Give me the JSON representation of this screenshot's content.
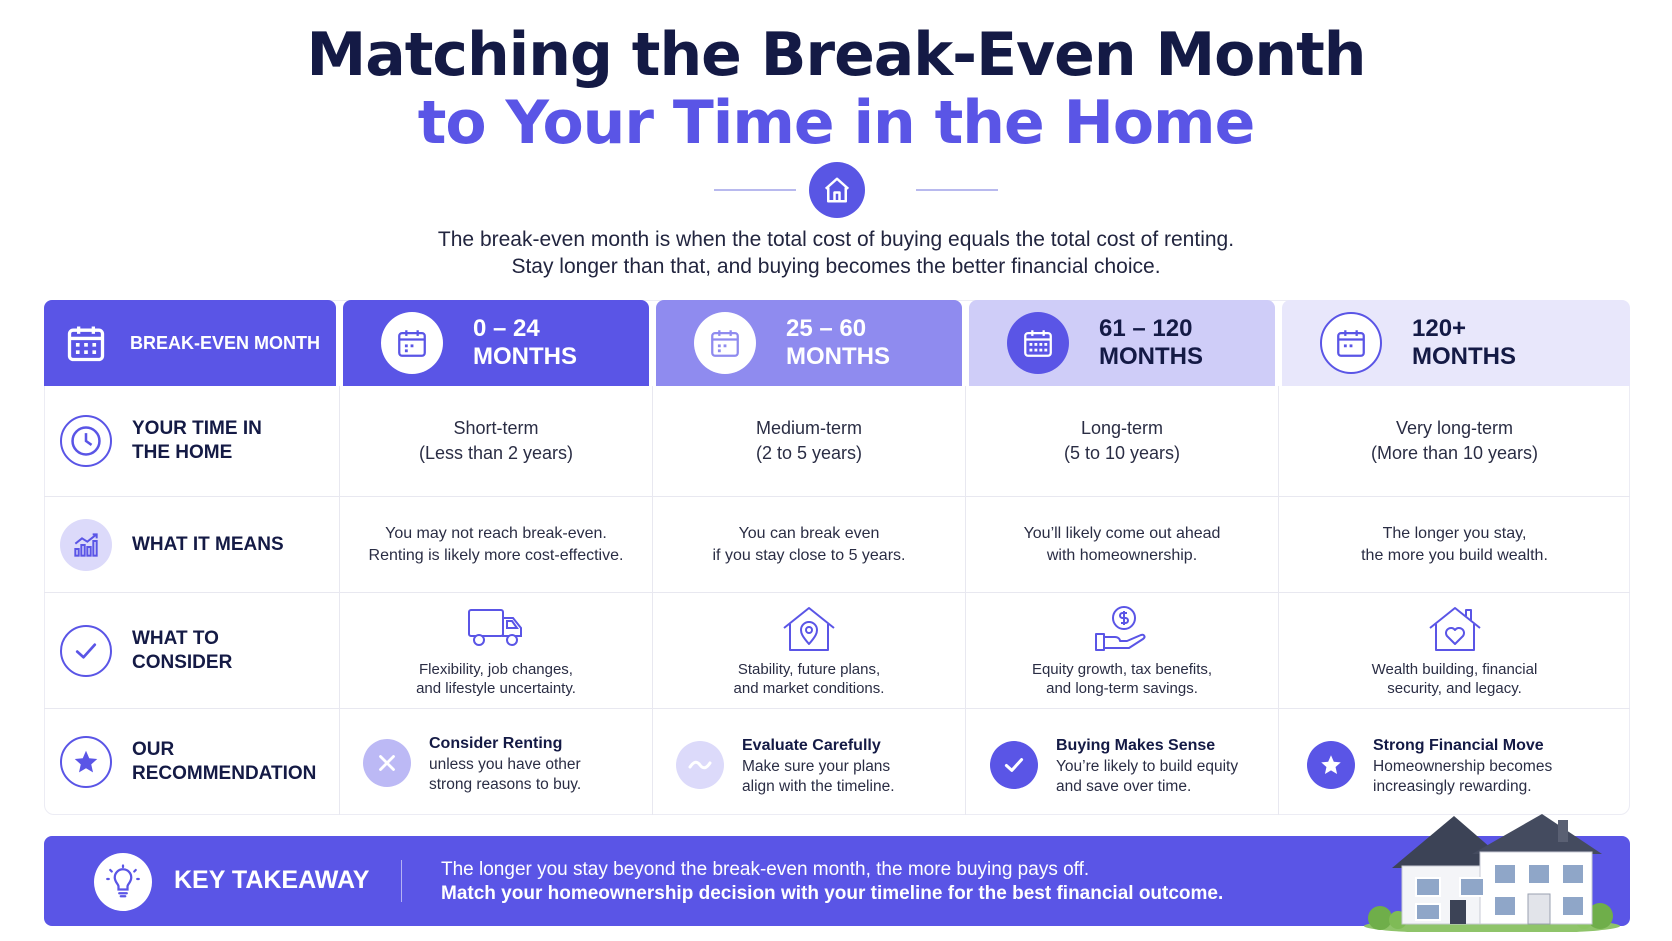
{
  "title": {
    "line1": "Matching the Break-Even Month",
    "line2": "to Your Time in the Home"
  },
  "subtitle": {
    "line1": "The break-even month is when the total cost of buying equals the total cost of renting.",
    "line2": "Stay longer than that, and buying becomes the better financial choice."
  },
  "header": {
    "label": "BREAK-EVEN MONTH",
    "columns": [
      {
        "line1": "0 – 24",
        "line2": "MONTHS",
        "icon": "calendar-icon"
      },
      {
        "line1": "25 – 60",
        "line2": "MONTHS",
        "icon": "calendar-icon"
      },
      {
        "line1": "61 – 120",
        "line2": "MONTHS",
        "icon": "calendar-icon"
      },
      {
        "line1": "120+",
        "line2": "MONTHS",
        "icon": "calendar-icon"
      }
    ]
  },
  "rows": {
    "time": {
      "label_line1": "YOUR TIME IN",
      "label_line2": "THE HOME",
      "cells": [
        {
          "line1": "Short-term",
          "line2": "(Less than 2 years)"
        },
        {
          "line1": "Medium-term",
          "line2": "(2 to 5 years)"
        },
        {
          "line1": "Long-term",
          "line2": "(5 to 10 years)"
        },
        {
          "line1": "Very long-term",
          "line2": "(More than 10 years)"
        }
      ]
    },
    "means": {
      "label": "WHAT IT MEANS",
      "cells": [
        {
          "line1": "You may not reach break-even.",
          "line2": "Renting is likely more cost-effective."
        },
        {
          "line1": "You can break even",
          "line2": "if you stay close to 5 years."
        },
        {
          "line1": "You’ll likely come out ahead",
          "line2": "with homeownership."
        },
        {
          "line1": "The longer you stay,",
          "line2": "the more you build wealth."
        }
      ]
    },
    "consider": {
      "label_line1": "WHAT TO",
      "label_line2": "CONSIDER",
      "cells": [
        {
          "line1": "Flexibility, job changes,",
          "line2": "and lifestyle uncertainty.",
          "icon": "moving-truck-icon"
        },
        {
          "line1": "Stability, future plans,",
          "line2": "and market conditions.",
          "icon": "house-location-icon"
        },
        {
          "line1": "Equity growth, tax benefits,",
          "line2": "and long-term savings.",
          "icon": "money-hand-icon"
        },
        {
          "line1": "Wealth building, financial",
          "line2": "security, and legacy.",
          "icon": "house-heart-icon"
        }
      ]
    },
    "recommendation": {
      "label_line1": "OUR",
      "label_line2": "RECOMMENDATION",
      "cells": [
        {
          "title": "Consider Renting",
          "line1": "unless you have other",
          "line2": "strong reasons to buy.",
          "icon": "x-icon"
        },
        {
          "title": "Evaluate Carefully",
          "line1": "Make sure your plans",
          "line2": "align with the timeline.",
          "icon": "wave-icon"
        },
        {
          "title": "Buying Makes Sense",
          "line1": "You’re likely to build equity",
          "line2": "and save over time.",
          "icon": "check-icon"
        },
        {
          "title": "Strong Financial Move",
          "line1": "Homeownership becomes",
          "line2": "increasingly rewarding.",
          "icon": "star-icon"
        }
      ]
    }
  },
  "takeaway": {
    "label": "KEY TAKEAWAY",
    "line1": "The longer you stay beyond the break-even month, the more buying pays off.",
    "line2": "Match your homeownership decision with your timeline for the best financial outcome."
  },
  "colors": {
    "accent": "#5a55e6",
    "navy": "#141a45",
    "lavender": "#8f8bef",
    "light_lavender": "#cfcdf8",
    "pale_lavender": "#e8e7fb"
  }
}
